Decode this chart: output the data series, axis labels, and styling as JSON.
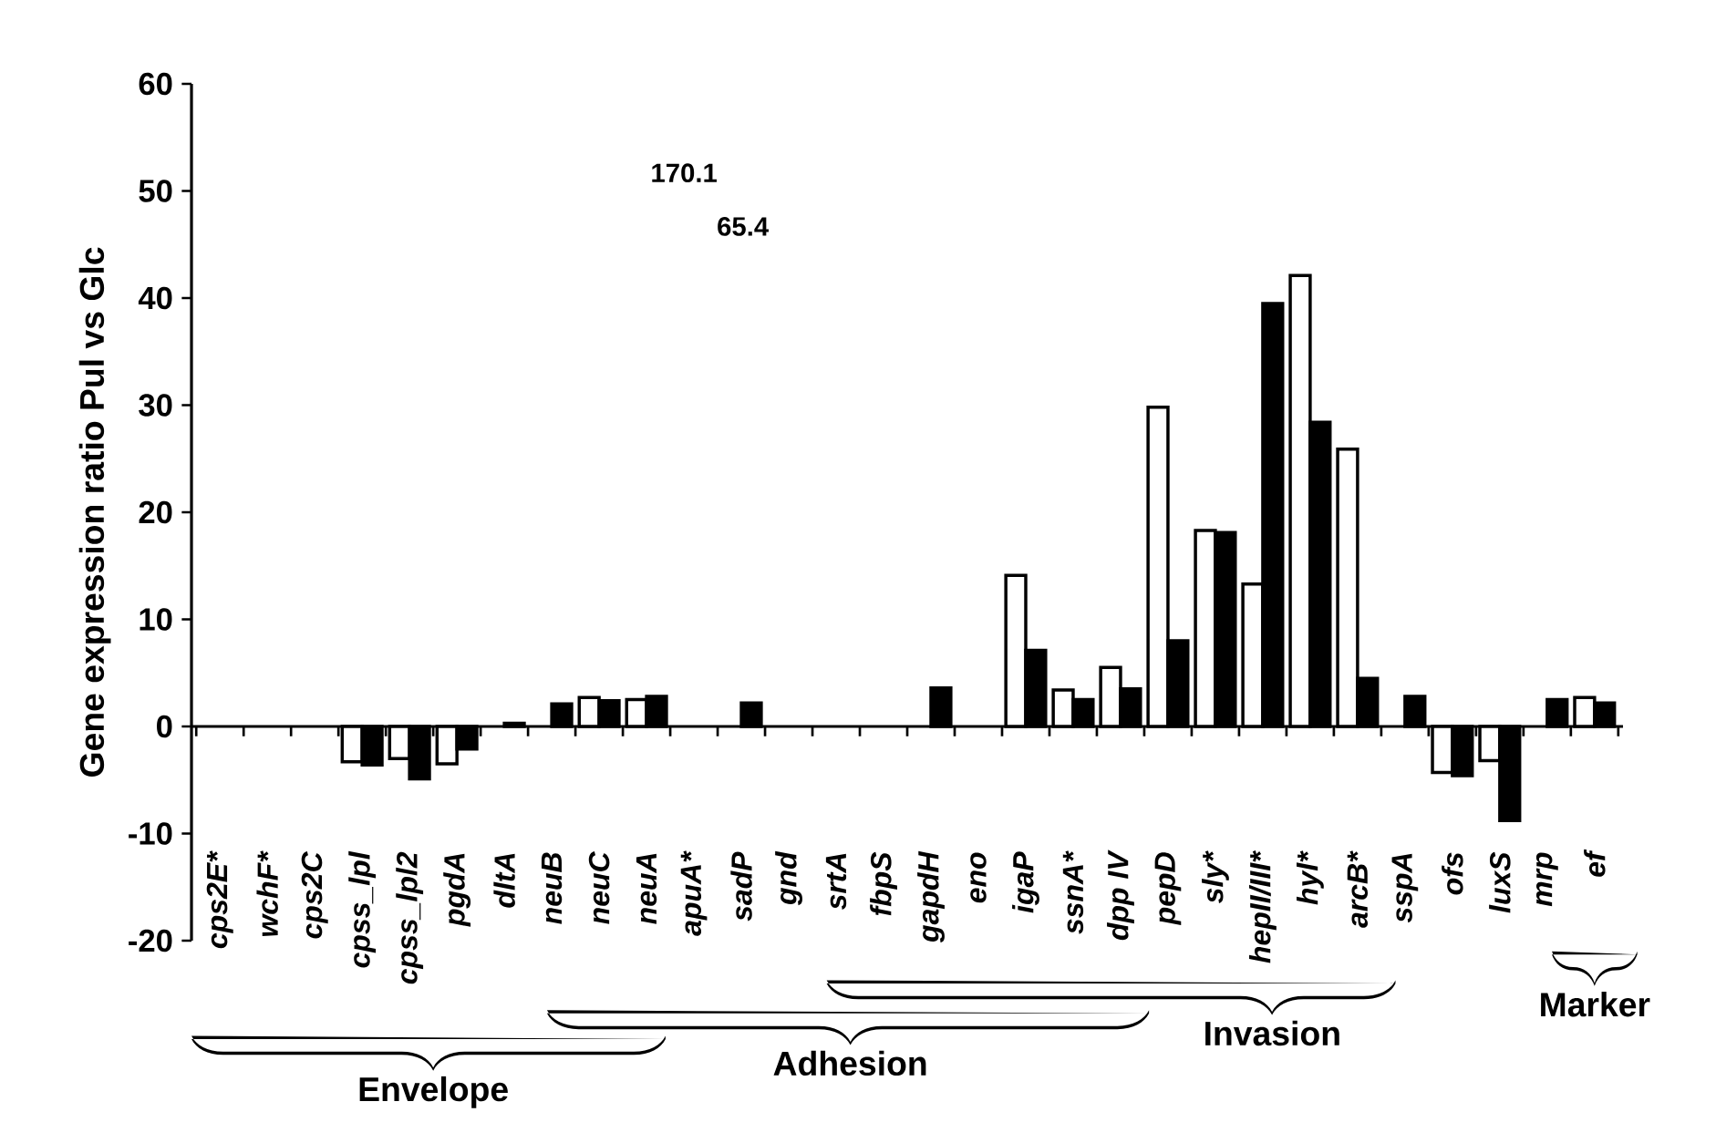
{
  "chart_data": {
    "type": "bar",
    "ylabel": "Gene expression ratio Pul vs Glc",
    "categories": [
      "cps2E*",
      "wchF*",
      "cps2C",
      "cpss_lpl",
      "cpss_lpl2",
      "pgdA",
      "dltA",
      "neuB",
      "neuC",
      "neuA",
      "apuA*",
      "sadP",
      "gnd",
      "srtA",
      "fbpS",
      "gapdH",
      "eno",
      "igaP",
      "ssnA*",
      "dpp IV",
      "pepD",
      "sly*",
      "hepII/III*",
      "hyl*",
      "arcB*",
      "sspA",
      "ofs",
      "luxS",
      "mrp",
      "ef"
    ],
    "series": [
      {
        "color": "#ffffff",
        "values": [
          null,
          null,
          null,
          -3.3,
          -3.0,
          -3.5,
          null,
          null,
          2.7,
          2.5,
          null,
          null,
          null,
          null,
          null,
          null,
          null,
          14.1,
          3.4,
          5.5,
          29.8,
          18.3,
          13.3,
          42.1,
          25.9,
          null,
          -4.3,
          -3.2,
          null,
          2.7
        ]
      },
      {
        "color": "#000000",
        "values": [
          null,
          null,
          null,
          -3.6,
          -4.9,
          -2.1,
          0.3,
          2.1,
          2.4,
          2.8,
          null,
          2.2,
          null,
          null,
          null,
          3.6,
          null,
          7.1,
          2.5,
          3.5,
          8.0,
          18.1,
          39.5,
          28.4,
          4.5,
          2.8,
          -4.6,
          -8.8,
          2.5,
          2.2
        ]
      }
    ],
    "ylim": [
      -20,
      60
    ],
    "yticks": [
      -20,
      -10,
      0,
      10,
      20,
      30,
      40,
      50,
      60
    ],
    "annotations": [
      "Envelope",
      "Adhesion",
      "Invasion",
      "Marker",
      "170.1",
      "65.4"
    ]
  }
}
